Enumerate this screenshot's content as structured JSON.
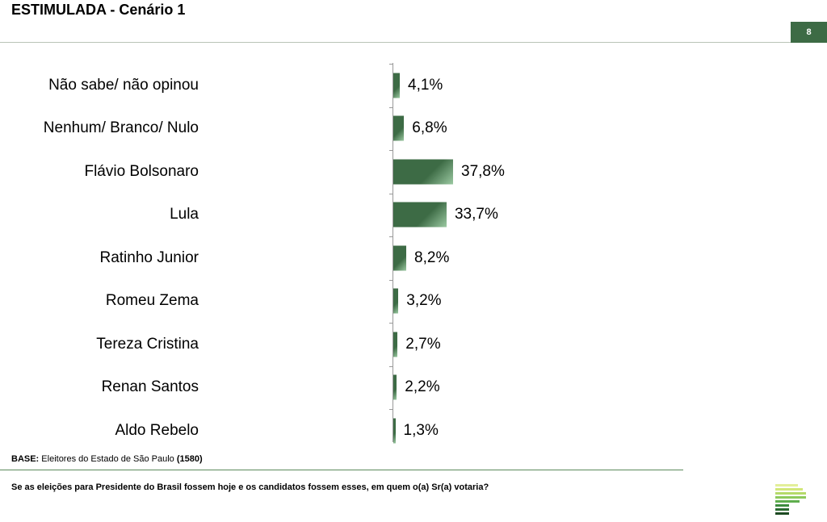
{
  "header": {
    "title": "ESTIMULADA - Cenário 1",
    "page_number": "8"
  },
  "colors": {
    "bar": "#3d6b45",
    "badge": "#3d6b45",
    "rule": "#5a8a5a"
  },
  "chart_data": {
    "type": "bar",
    "orientation": "horizontal",
    "title": "ESTIMULADA - Cenário 1",
    "xlabel": "",
    "ylabel": "",
    "grid": false,
    "categories": [
      "Não sabe/ não opinou",
      "Nenhum/ Branco/ Nulo",
      "Flávio Bolsonaro",
      "Lula",
      "Ratinho Junior",
      "Romeu Zema",
      "Tereza Cristina",
      "Renan Santos",
      "Aldo Rebelo"
    ],
    "values": [
      4.1,
      6.8,
      37.8,
      33.7,
      8.2,
      3.2,
      2.7,
      2.2,
      1.3
    ],
    "value_labels": [
      "4,1%",
      "6,8%",
      "37,8%",
      "33,7%",
      "8,2%",
      "3,2%",
      "2,7%",
      "2,2%",
      "1,3%"
    ],
    "unit": "%"
  },
  "footer": {
    "base_label": "BASE:",
    "base_text": " Eleitores do Estado de São Paulo ",
    "base_count": "(1580)",
    "question": "Se as eleições para Presidente do Brasil fossem hoje e os candidatos fossem esses, em quem o(a) Sr(a) votaria?"
  }
}
